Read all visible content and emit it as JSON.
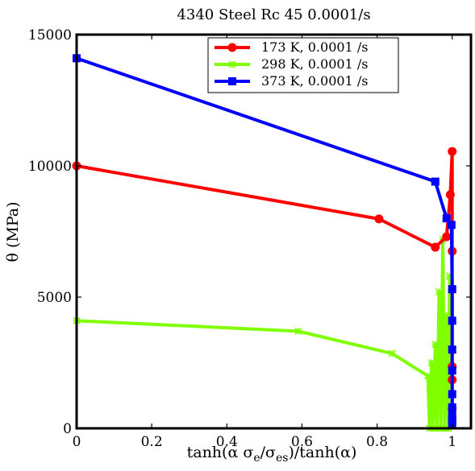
{
  "chart_data": {
    "type": "line",
    "title": "4340 Steel Rc 45 0.0001/s",
    "xlabel": "tanh(α σ_e/σ_es)/tanh(α)",
    "xlabel_parts": {
      "main1": "tanh(α σ",
      "sub1": "e",
      "main2": "/σ",
      "sub2": "es",
      "main3": ")/tanh(α)"
    },
    "ylabel": "θ (MPa)",
    "xlim": [
      0,
      1.05
    ],
    "ylim": [
      0,
      15000
    ],
    "xticks": [
      0,
      0.2,
      0.4,
      0.6,
      0.8,
      1
    ],
    "xtick_labels": [
      "0",
      "0.2",
      "0.4",
      "0.6",
      "0.8",
      "1"
    ],
    "yticks": [
      0,
      5000,
      10000,
      15000
    ],
    "ytick_labels": [
      "0",
      "5000",
      "10000",
      "15000"
    ],
    "grid": false,
    "legend_position": "top-right",
    "series": [
      {
        "name": "173 K, 0.0001 /s",
        "color": "#ff0000",
        "marker": "circle",
        "x": [
          0,
          0.805,
          0.955,
          0.985,
          0.995,
          1.0,
          1.0,
          1.0,
          1.0,
          1.0
        ],
        "y": [
          10000,
          7980,
          6900,
          7300,
          8900,
          10550,
          6750,
          2350,
          1850,
          750
        ]
      },
      {
        "name": "298 K, 0.0001 /s",
        "color": "#7fff00",
        "marker": "star",
        "x": [
          0,
          0.59,
          0.84,
          0.935,
          0.94,
          0.945,
          0.95,
          0.955,
          0.96,
          0.965,
          0.97,
          0.975,
          0.98,
          0.985,
          0.99,
          0.993
        ],
        "y": [
          4100,
          3700,
          2850,
          2000,
          0,
          2500,
          0,
          3200,
          0,
          5200,
          0,
          7200,
          0,
          4300,
          0,
          5800
        ]
      },
      {
        "name": "373 K, 0.0001 /s",
        "color": "#0000ff",
        "marker": "square",
        "x": [
          0,
          0.955,
          0.985,
          0.998,
          1.0,
          1.0,
          1.0,
          1.0,
          1.0,
          1.0,
          1.0,
          1.0,
          1.0
        ],
        "y": [
          14100,
          9400,
          8000,
          7750,
          5300,
          4100,
          3000,
          2200,
          1300,
          800,
          500,
          300,
          200
        ]
      }
    ]
  }
}
